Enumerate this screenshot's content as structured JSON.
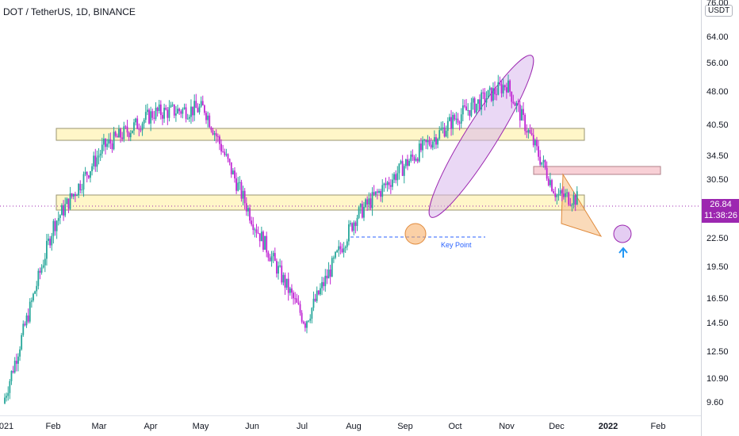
{
  "header": {
    "title": "DOT / TetherUS, 1D, BINANCE"
  },
  "price_axis": {
    "currency": "USDT",
    "labels": [
      "76.00",
      "64.00",
      "56.00",
      "48.00",
      "40.50",
      "34.50",
      "30.50",
      "22.50",
      "19.50",
      "16.50",
      "14.50",
      "12.50",
      "10.90",
      "9.60"
    ],
    "current_price": "26.84",
    "countdown": "11:38:26"
  },
  "time_axis": {
    "labels": [
      "021",
      "Feb",
      "Mar",
      "Apr",
      "May",
      "Jun",
      "Jul",
      "Aug",
      "Sep",
      "Oct",
      "Nov",
      "Dec",
      "2022",
      "Feb"
    ]
  },
  "annotations": {
    "key_point": "Key Point"
  },
  "colors": {
    "up": "#26a69a",
    "down": "#c026d3",
    "zone_fill": "#fff3c4",
    "zone_border": "#8a8a6a",
    "resistance_fill": "#f8d0d6",
    "ellipse": "#9c27b0",
    "circle_orange": "#f7a95c",
    "key_line": "#2962ff",
    "arrow": "#2196f3"
  },
  "chart_data": {
    "type": "candlestick",
    "symbol": "DOT / TetherUS",
    "interval": "1D",
    "exchange": "BINANCE",
    "y_scale": "log",
    "ylim": [
      9.0,
      76.0
    ],
    "last_price": 26.84,
    "monthly_path": [
      {
        "month": "Jan 2021",
        "price": 9.5
      },
      {
        "month": "Feb 2021",
        "price": 24.0
      },
      {
        "month": "Mar 2021",
        "price": 36.0
      },
      {
        "month": "Apr 2021",
        "price": 43.0
      },
      {
        "month": "May 2021",
        "price": 44.0
      },
      {
        "month": "Jun 2021",
        "price": 24.0
      },
      {
        "month": "Jul 2021",
        "price": 14.5
      },
      {
        "month": "Aug 2021",
        "price": 25.0
      },
      {
        "month": "Sep 2021",
        "price": 33.0
      },
      {
        "month": "Oct 2021",
        "price": 42.0
      },
      {
        "month": "Nov 2021",
        "price": 50.0
      },
      {
        "month": "Dec 2021",
        "price": 28.0
      },
      {
        "month": "Jan 2022",
        "price": 26.84
      }
    ],
    "zones": [
      {
        "label": "",
        "low": 37.5,
        "high": 39.5
      },
      {
        "label": "",
        "low": 26.5,
        "high": 28.2
      },
      {
        "label": "",
        "low": 31.8,
        "high": 32.8
      }
    ],
    "key_level": 23.0
  }
}
